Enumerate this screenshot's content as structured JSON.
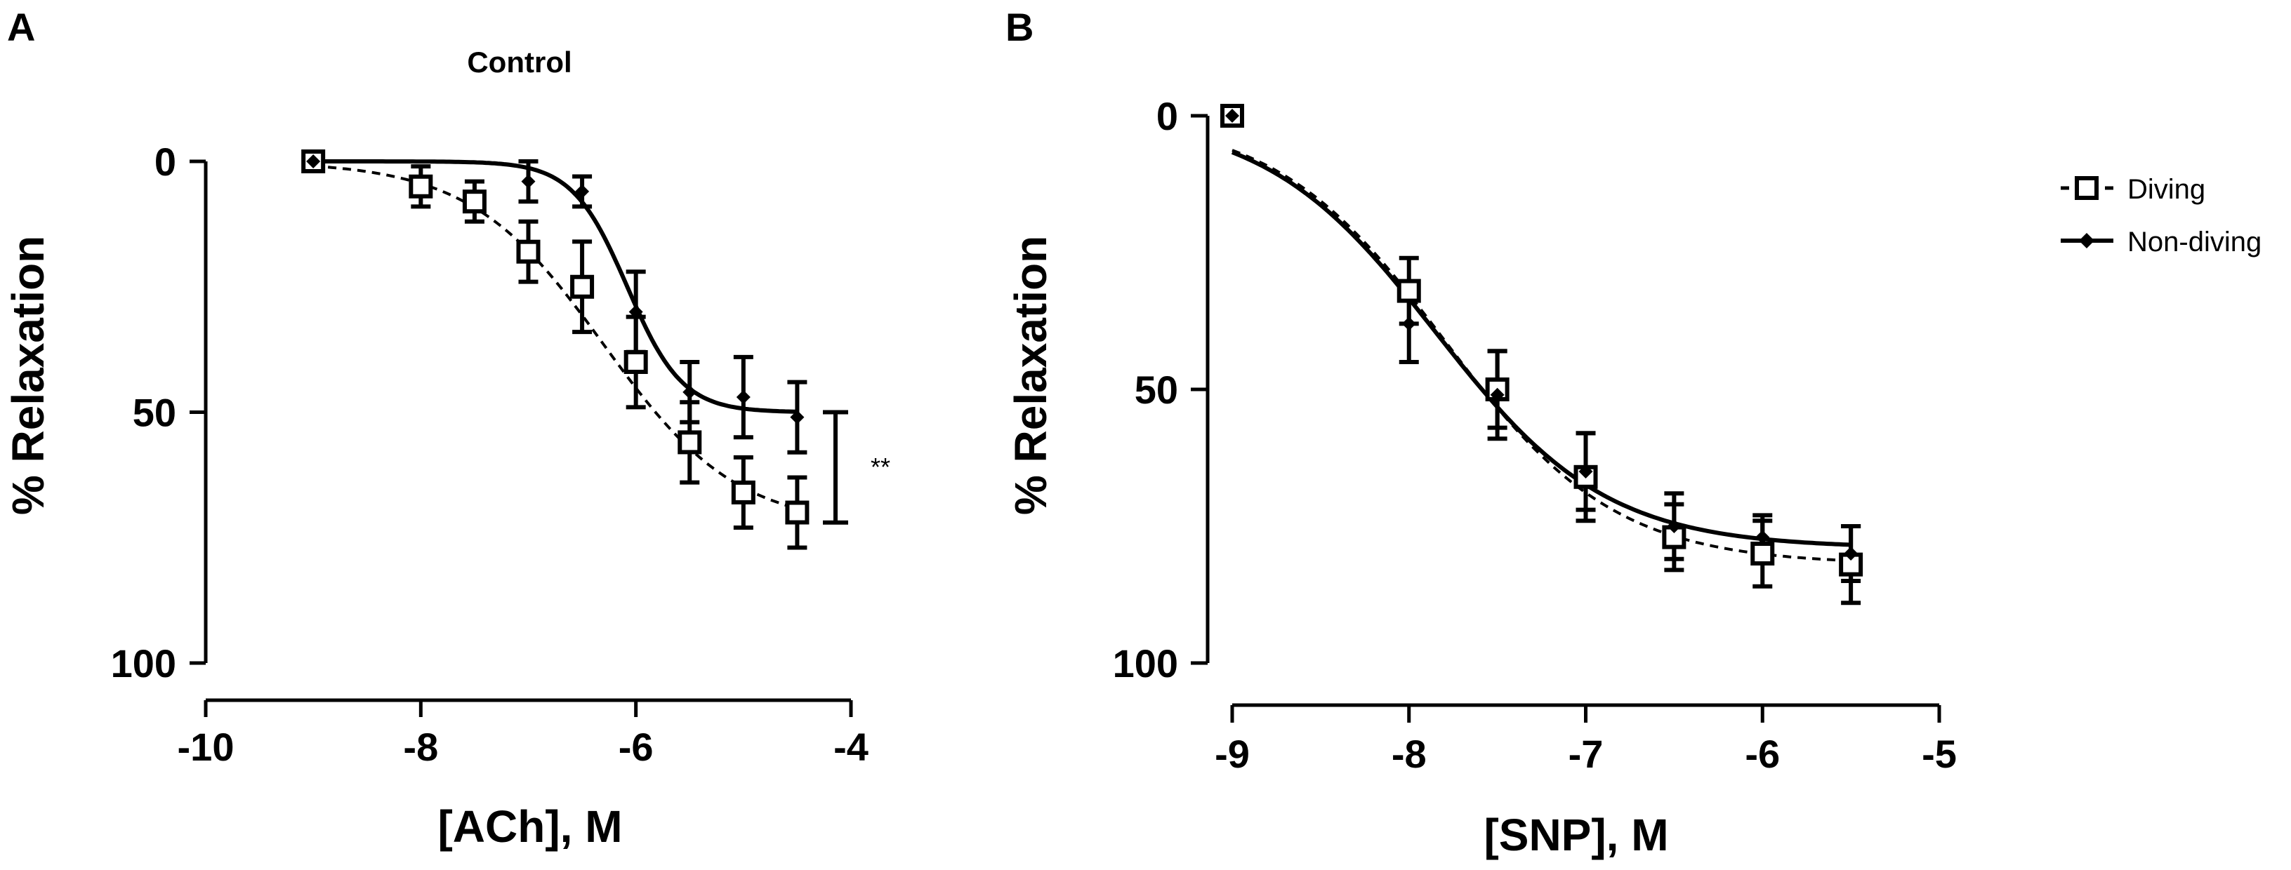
{
  "chart_data": [
    {
      "panel": "A",
      "type": "line",
      "title": "Control",
      "xlabel": "[ACh], M",
      "ylabel": "% Relaxation",
      "xlim": [
        -10,
        -4
      ],
      "ylim": [
        0,
        100
      ],
      "y_inverted": true,
      "xticks": [
        "-10",
        "-8",
        "-6",
        "-4"
      ],
      "yticks": [
        "0",
        "50",
        "100"
      ],
      "grid": false,
      "significance": "**",
      "series": [
        {
          "name": "Diving",
          "marker": "open-square",
          "line": "dashed",
          "x": [
            -9,
            -8,
            -7.5,
            -7,
            -6.5,
            -6,
            -5.5,
            -5,
            -4.5
          ],
          "y": [
            0,
            5,
            8,
            18,
            25,
            40,
            56,
            66,
            70
          ],
          "err": [
            1,
            4,
            4,
            6,
            9,
            9,
            8,
            7,
            7
          ],
          "fit": {
            "bottom": 0,
            "top": 73,
            "logEC50": -6.3,
            "hill": 0.7
          }
        },
        {
          "name": "Non-diving",
          "marker": "filled-diamond",
          "line": "solid",
          "x": [
            -9,
            -7,
            -6.5,
            -6,
            -5.5,
            -5,
            -4.5
          ],
          "y": [
            0,
            4,
            6,
            30,
            46,
            47,
            51
          ],
          "err": [
            1,
            4,
            3,
            8,
            6,
            8,
            7
          ],
          "fit": {
            "bottom": 0,
            "top": 50,
            "logEC50": -6.08,
            "hill": 1.7
          }
        }
      ]
    },
    {
      "panel": "B",
      "type": "line",
      "title": "",
      "xlabel": "[SNP], M",
      "ylabel": "% Relaxation",
      "xlim": [
        -9,
        -5
      ],
      "ylim": [
        0,
        100
      ],
      "y_inverted": true,
      "xticks": [
        "-9",
        "-8",
        "-7",
        "-6",
        "-5"
      ],
      "yticks": [
        "0",
        "50",
        "100"
      ],
      "grid": false,
      "legend_position": "top-right",
      "series": [
        {
          "name": "Diving",
          "marker": "open-square",
          "line": "dashed",
          "x": [
            -9,
            -8,
            -7.5,
            -7,
            -6.5,
            -6,
            -5.5
          ],
          "y": [
            0,
            32,
            50,
            66,
            77,
            80,
            82
          ],
          "err": [
            1,
            6,
            7,
            8,
            6,
            6,
            7
          ],
          "fit": {
            "bottom": 0,
            "top": 82,
            "logEC50": -7.8,
            "hill": 0.9
          }
        },
        {
          "name": "Non-diving",
          "marker": "filled-diamond",
          "line": "solid",
          "x": [
            -9,
            -8,
            -7.5,
            -7,
            -6.5,
            -6,
            -5.5
          ],
          "y": [
            0,
            38,
            51,
            65,
            75,
            77,
            80
          ],
          "err": [
            1,
            7,
            8,
            7,
            6,
            4,
            5
          ],
          "fit": {
            "bottom": 0,
            "top": 79,
            "logEC50": -7.85,
            "hill": 0.9
          }
        }
      ]
    }
  ],
  "colors": {
    "ink": "#000000",
    "background": "#ffffff"
  }
}
